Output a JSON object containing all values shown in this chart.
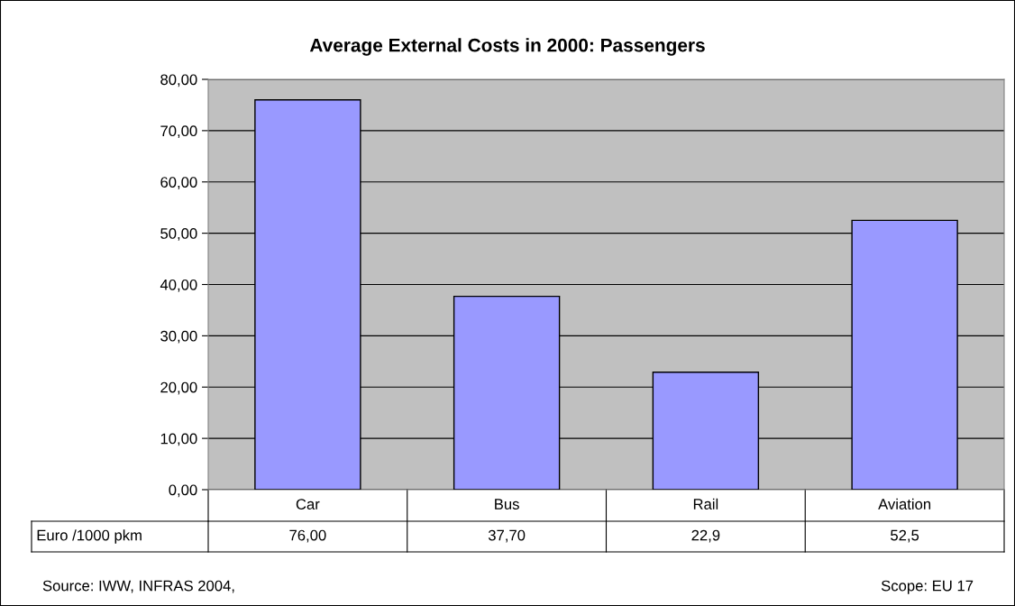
{
  "chart_data": {
    "type": "bar",
    "title": "Average External Costs in 2000: Passengers",
    "categories": [
      "Car",
      "Bus",
      "Rail",
      "Aviation"
    ],
    "series": [
      {
        "name": "Euro /1000 pkm",
        "color": "#9999ff",
        "values": [
          76.0,
          37.7,
          22.9,
          52.5
        ]
      }
    ],
    "value_labels": [
      "76,00",
      "37,70",
      "22,9",
      "52,5"
    ],
    "ylim": [
      0,
      80
    ],
    "yticks": [
      {
        "value": 0,
        "label": "0,00"
      },
      {
        "value": 10,
        "label": "10,00"
      },
      {
        "value": 20,
        "label": "20,00"
      },
      {
        "value": 30,
        "label": "30,00"
      },
      {
        "value": 40,
        "label": "40,00"
      },
      {
        "value": 50,
        "label": "50,00"
      },
      {
        "value": 60,
        "label": "60,00"
      },
      {
        "value": 70,
        "label": "70,00"
      },
      {
        "value": 80,
        "label": "80,00"
      }
    ],
    "grid": "y",
    "legend": "bottom left",
    "annotations": [
      "Source: IWW, INFRAS 2004,",
      "Scope: EU 17"
    ]
  }
}
